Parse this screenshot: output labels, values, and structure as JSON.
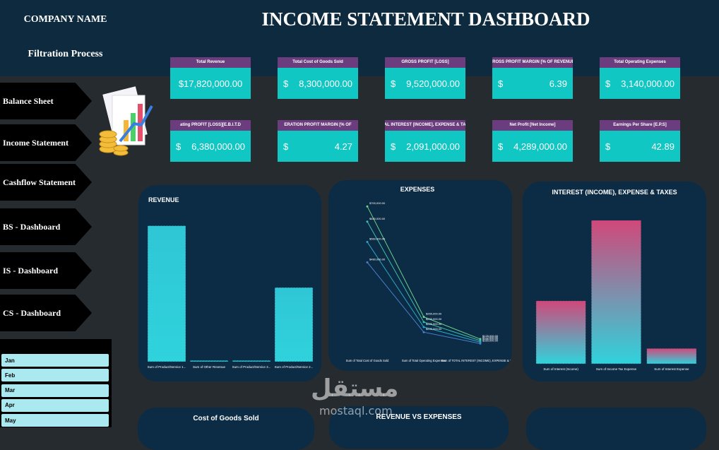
{
  "header": {
    "company": "COMPANY NAME",
    "subtitle": "Filtration Process",
    "title": "INCOME STATEMENT DASHBOARD"
  },
  "nav": [
    "Balance Sheet",
    "Income Statement",
    "Cashflow Statement",
    "BS - Dashboard",
    "IS - Dashboard",
    "CS - Dashboard"
  ],
  "months": [
    "Jan",
    "Feb",
    "Mar",
    "Apr",
    "May"
  ],
  "kpis": [
    {
      "title": "Total Revenue",
      "value": "$17,820,000.00"
    },
    {
      "title": "Total Cost of Goods Sold",
      "currency": "$",
      "amount": "8,300,000.00"
    },
    {
      "title": "GROSS PROFIT [LOSS]",
      "currency": "$",
      "amount": "9,520,000.00"
    },
    {
      "title": "GROSS PROFIT MARGIN [% OF REVENUE]",
      "currency": "$",
      "amount": "6.39"
    },
    {
      "title": "Total Operating Expenses",
      "currency": "$",
      "amount": "3,140,000.00"
    },
    {
      "title": "ating PROFIT [LOSS][E.B.I.T.D",
      "currency": "$",
      "amount": "6,380,000.00"
    },
    {
      "title": "ERATION PROFIT MARGIN [% OF",
      "currency": "$",
      "amount": "4.27"
    },
    {
      "title": "TOTAL INTEREST [INCOME], EXPENSE & TAXES",
      "currency": "$",
      "amount": "2,091,000.00"
    },
    {
      "title": "Net Profit [Net Income]",
      "currency": "$",
      "amount": "4,289,000.00"
    },
    {
      "title": "Earnings Per Share [E.P.S]",
      "currency": "$",
      "amount": "42.89"
    }
  ],
  "charts": [
    {
      "type": "bar",
      "title": "REVENUE",
      "categories": [
        "Sum of Product/Service 1...",
        "Sum of Other Revenue",
        "Sum of Product/Service 3...",
        "Sum of Product/Service 2..."
      ],
      "values": [
        1100000,
        10000,
        10000,
        600000
      ],
      "color": "#2fc6d6",
      "ylim": [
        0,
        1200000
      ]
    },
    {
      "type": "line",
      "title": "EXPENSES",
      "categories": [
        "Sum of Total Cost of Goods Sold",
        "Sum of Total Operating Expenses",
        "Sum of TOTAL INTEREST (INCOME), EXPENSE & TAXES"
      ],
      "ylim": [
        150000,
        720000
      ],
      "series": [
        {
          "color": "#6fd18a",
          "values": [
            700000,
            265000,
            178000
          ],
          "value_labels": [
            "$700,000.00",
            "$265,000.00",
            "$178,000.00"
          ]
        },
        {
          "color": "#3fbfa8",
          "values": [
            640000,
            245000,
            172000
          ],
          "value_labels": [
            "$640,000.00",
            "$245,000.00",
            "$172,000.00"
          ]
        },
        {
          "color": "#2aa6c8",
          "values": [
            560000,
            225000,
            166000
          ],
          "value_labels": [
            "$560,000.00",
            "$225,000.00",
            "$166,000.00"
          ]
        },
        {
          "color": "#4a7fd0",
          "values": [
            480000,
            205000,
            160000
          ],
          "value_labels": [
            "$480,000.00",
            "$205,000.00",
            "$160,000.00"
          ]
        }
      ]
    },
    {
      "type": "bar",
      "title": "INTEREST (INCOME), EXPENSE & TAXES",
      "categories": [
        "Sum of Interest (Income)",
        "Sum of Income Tax Expense",
        "Sum of Interest Expense"
      ],
      "values": [
        90000,
        205000,
        22000
      ],
      "color": "#d0487a",
      "ylim": [
        0,
        220000
      ]
    }
  ],
  "lower_panels": [
    "Cost of Goods Sold",
    "REVENUE VS EXPENSES"
  ],
  "watermark": {
    "arabic": "مستقل",
    "latin": "mostaql.com"
  }
}
